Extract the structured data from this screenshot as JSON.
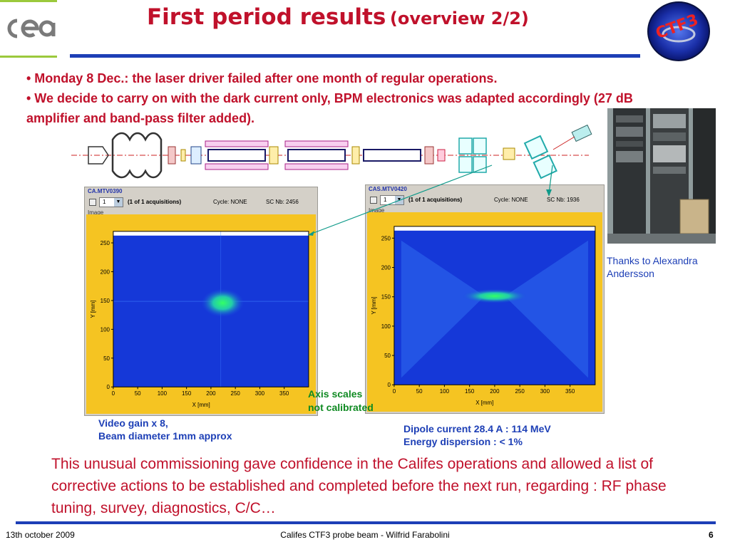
{
  "title": {
    "main": "First period results",
    "sub": "(overview 2/2)"
  },
  "bullets": [
    "• Monday 8 Dec.: the laser driver failed after one month of regular operations.",
    "• We decide to carry on with the dark current only, BPM electronics was adapted accordingly (27 dB amplifier and band-pass filter added)."
  ],
  "photo_credit": {
    "line1": "Thanks to Alexandra",
    "line2": "Andersson"
  },
  "cameras": [
    {
      "name": "CA.MTV0390",
      "selected": "1",
      "acquisitions": "(1 of 1 acquisitions)",
      "cycle": "Cycle: NONE",
      "sc": "SC Nb: 2456",
      "image_label": "Image",
      "y_label": "Y [mm]",
      "x_label": "X [mm]",
      "x_ticks": [
        "0",
        "50",
        "100",
        "150",
        "200",
        "250",
        "300",
        "350"
      ],
      "y_ticks": [
        "0",
        "50",
        "100",
        "150",
        "200",
        "250"
      ]
    },
    {
      "name": "CAS.MTV0420",
      "selected": "1",
      "acquisitions": "(1 of 1 acquisitions)",
      "cycle": "Cycle: NONE",
      "sc": "SC Nb: 1936",
      "image_label": "Image",
      "y_label": "Y [mm]",
      "x_label": "X [mm]",
      "x_ticks": [
        "0",
        "50",
        "100",
        "150",
        "200",
        "250",
        "300",
        "350"
      ],
      "y_ticks": [
        "0",
        "50",
        "100",
        "150",
        "200",
        "250"
      ]
    }
  ],
  "axis_note": {
    "line1": "Axis scales",
    "line2": "not calibrated"
  },
  "caption_left": {
    "line1": "Video gain x 8,",
    "line2": "Beam diameter 1mm approx"
  },
  "caption_right": {
    "line1": "Dipole current 28.4 A : 114 MeV",
    "line2": "Energy dispersion : < 1%"
  },
  "conclusion": "This unusual commissioning gave confidence in the Califes operations and allowed a list of corrective actions to be established and completed before the next run, regarding : RF phase tuning, survey, diagnostics, C/C…",
  "footer": {
    "date": "13th october 2009",
    "center": "Califes CTF3 probe beam - Wilfrid Farabolini",
    "page": "6"
  },
  "logos": {
    "left": "cea",
    "right": "CTF3"
  },
  "colors": {
    "title": "#c0112b",
    "accent_blue": "#1d3fb6",
    "note_green": "#0f8a22",
    "cea_green": "#9bc93c"
  }
}
